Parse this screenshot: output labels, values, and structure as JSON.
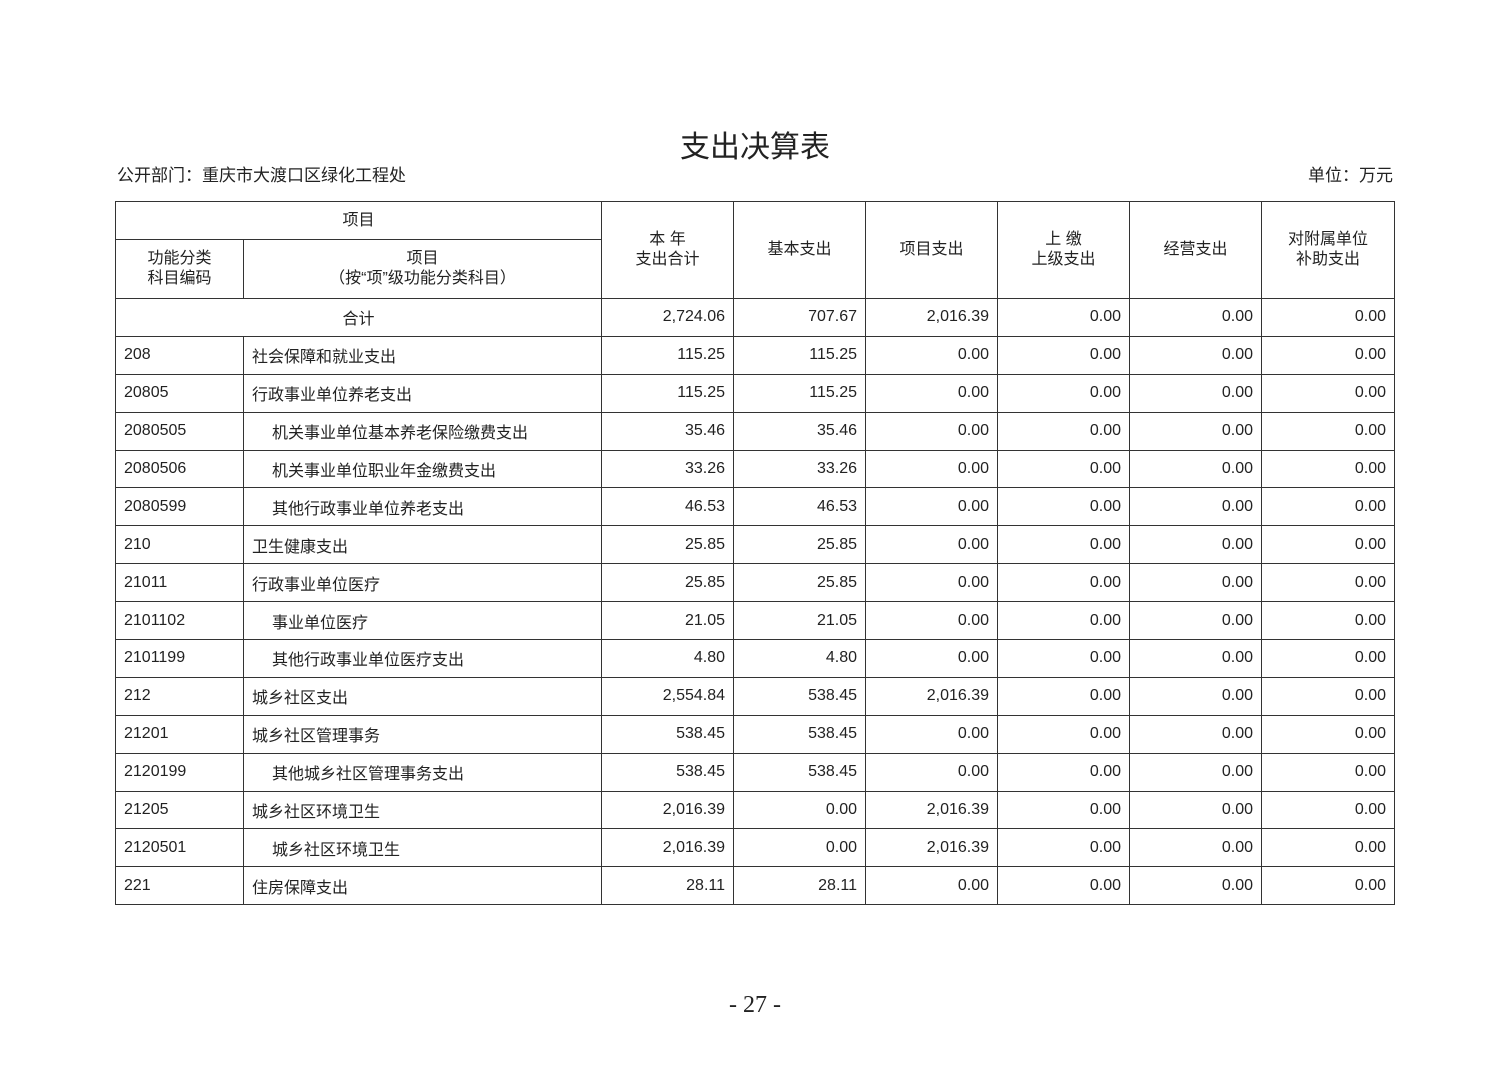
{
  "title": "支出决算表",
  "department": "公开部门：重庆市大渡口区绿化工程处",
  "unit": "单位：万元",
  "header": {
    "group": "项目",
    "code": [
      "功能分类",
      "科目编码"
    ],
    "item": [
      "项目",
      "（按“项”级功能分类科目）"
    ],
    "total": [
      "本 年",
      "支出合计"
    ],
    "basic": "基本支出",
    "project": "项目支出",
    "upper": [
      "上 缴",
      "上级支出"
    ],
    "business": "经营支出",
    "subsidy": [
      "对附属单位",
      "补助支出"
    ]
  },
  "total_row": {
    "label": "合计",
    "values": [
      "2,724.06",
      "707.67",
      "2,016.39",
      "0.00",
      "0.00",
      "0.00"
    ]
  },
  "rows": [
    {
      "code": "208",
      "name": "社会保障和就业支出",
      "level": 1,
      "values": [
        "115.25",
        "115.25",
        "0.00",
        "0.00",
        "0.00",
        "0.00"
      ]
    },
    {
      "code": "20805",
      "name": "行政事业单位养老支出",
      "level": 2,
      "values": [
        "115.25",
        "115.25",
        "0.00",
        "0.00",
        "0.00",
        "0.00"
      ]
    },
    {
      "code": "2080505",
      "name": "机关事业单位基本养老保险缴费支出",
      "level": 3,
      "values": [
        "35.46",
        "35.46",
        "0.00",
        "0.00",
        "0.00",
        "0.00"
      ]
    },
    {
      "code": "2080506",
      "name": "机关事业单位职业年金缴费支出",
      "level": 3,
      "values": [
        "33.26",
        "33.26",
        "0.00",
        "0.00",
        "0.00",
        "0.00"
      ]
    },
    {
      "code": "2080599",
      "name": "其他行政事业单位养老支出",
      "level": 3,
      "values": [
        "46.53",
        "46.53",
        "0.00",
        "0.00",
        "0.00",
        "0.00"
      ]
    },
    {
      "code": "210",
      "name": "卫生健康支出",
      "level": 1,
      "values": [
        "25.85",
        "25.85",
        "0.00",
        "0.00",
        "0.00",
        "0.00"
      ]
    },
    {
      "code": "21011",
      "name": "行政事业单位医疗",
      "level": 2,
      "values": [
        "25.85",
        "25.85",
        "0.00",
        "0.00",
        "0.00",
        "0.00"
      ]
    },
    {
      "code": "2101102",
      "name": "事业单位医疗",
      "level": 3,
      "values": [
        "21.05",
        "21.05",
        "0.00",
        "0.00",
        "0.00",
        "0.00"
      ]
    },
    {
      "code": "2101199",
      "name": "其他行政事业单位医疗支出",
      "level": 3,
      "values": [
        "4.80",
        "4.80",
        "0.00",
        "0.00",
        "0.00",
        "0.00"
      ]
    },
    {
      "code": "212",
      "name": "城乡社区支出",
      "level": 1,
      "values": [
        "2,554.84",
        "538.45",
        "2,016.39",
        "0.00",
        "0.00",
        "0.00"
      ]
    },
    {
      "code": "21201",
      "name": "城乡社区管理事务",
      "level": 2,
      "values": [
        "538.45",
        "538.45",
        "0.00",
        "0.00",
        "0.00",
        "0.00"
      ]
    },
    {
      "code": "2120199",
      "name": "其他城乡社区管理事务支出",
      "level": 3,
      "values": [
        "538.45",
        "538.45",
        "0.00",
        "0.00",
        "0.00",
        "0.00"
      ]
    },
    {
      "code": "21205",
      "name": "城乡社区环境卫生",
      "level": 2,
      "values": [
        "2,016.39",
        "0.00",
        "2,016.39",
        "0.00",
        "0.00",
        "0.00"
      ]
    },
    {
      "code": "2120501",
      "name": "城乡社区环境卫生",
      "level": 3,
      "values": [
        "2,016.39",
        "0.00",
        "2,016.39",
        "0.00",
        "0.00",
        "0.00"
      ]
    },
    {
      "code": "221",
      "name": "住房保障支出",
      "level": 1,
      "values": [
        "28.11",
        "28.11",
        "0.00",
        "0.00",
        "0.00",
        "0.00"
      ]
    }
  ],
  "page_number": "- 27 -"
}
